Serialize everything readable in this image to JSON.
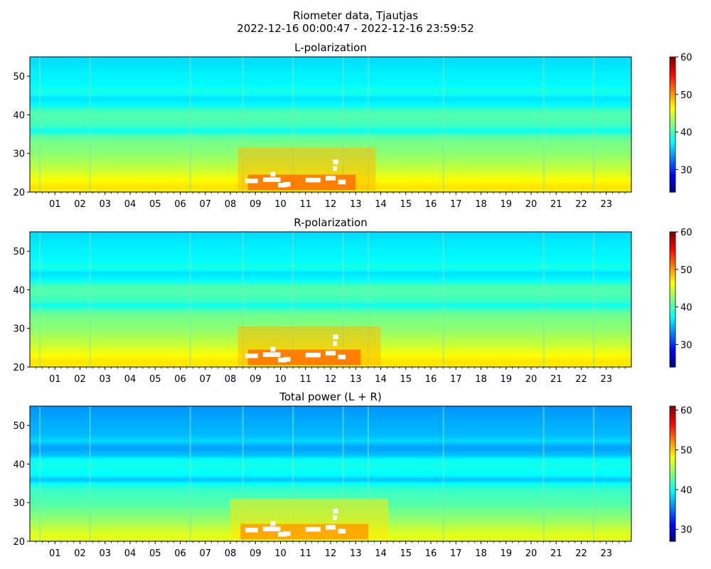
{
  "figure": {
    "title_line1": "Riometer data, Tjautjas",
    "title_line2": "2022-12-16 00:00:47 - 2022-12-16 23:59:52"
  },
  "colormap": "jet",
  "chart_data": [
    {
      "type": "heatmap",
      "title": "L-polarization",
      "xlabel": "",
      "ylabel": "",
      "x_tick_labels": [
        "01",
        "02",
        "03",
        "04",
        "05",
        "06",
        "07",
        "08",
        "09",
        "10",
        "11",
        "12",
        "13",
        "14",
        "15",
        "16",
        "17",
        "18",
        "19",
        "20",
        "21",
        "22",
        "23"
      ],
      "x_range_hours": [
        0,
        24
      ],
      "y_ticks": [
        20,
        30,
        40,
        50
      ],
      "ylim": [
        20,
        55
      ],
      "colorbar": {
        "ticks": [
          30,
          40,
          50,
          60
        ],
        "range": [
          24,
          60
        ]
      },
      "saturated_region": {
        "hours": [
          8.3,
          13.8
        ],
        "y": [
          20.5,
          31.5
        ],
        "peak_hours": [
          9.5,
          12.2
        ]
      },
      "spikes_hours": [
        0.4,
        2.4,
        6.4,
        8.5,
        10.5,
        12.5,
        13.5,
        16.5,
        20.5,
        22.5
      ]
    },
    {
      "type": "heatmap",
      "title": "R-polarization",
      "xlabel": "",
      "ylabel": "",
      "x_tick_labels": [
        "01",
        "02",
        "03",
        "04",
        "05",
        "06",
        "07",
        "08",
        "09",
        "10",
        "11",
        "12",
        "13",
        "14",
        "15",
        "16",
        "17",
        "18",
        "19",
        "20",
        "21",
        "22",
        "23"
      ],
      "x_range_hours": [
        0,
        24
      ],
      "y_ticks": [
        20,
        30,
        40,
        50
      ],
      "ylim": [
        20,
        55
      ],
      "colorbar": {
        "ticks": [
          30,
          40,
          50,
          60
        ],
        "range": [
          24,
          60
        ]
      },
      "saturated_region": {
        "hours": [
          8.3,
          14.0
        ],
        "y": [
          20.5,
          30.5
        ],
        "peak_hours": [
          9.5,
          12.2
        ]
      },
      "spikes_hours": [
        0.4,
        2.4,
        6.4,
        8.5,
        10.5,
        12.5,
        13.5,
        16.5,
        20.5,
        22.5
      ]
    },
    {
      "type": "heatmap",
      "title": "Total power (L + R)",
      "xlabel": "",
      "ylabel": "",
      "x_tick_labels": [
        "01",
        "02",
        "03",
        "04",
        "05",
        "06",
        "07",
        "08",
        "09",
        "10",
        "11",
        "12",
        "13",
        "14",
        "15",
        "16",
        "17",
        "18",
        "19",
        "20",
        "21",
        "22",
        "23"
      ],
      "x_range_hours": [
        0,
        24
      ],
      "y_ticks": [
        20,
        30,
        40,
        50
      ],
      "ylim": [
        20,
        55
      ],
      "colorbar": {
        "ticks": [
          30,
          40,
          50,
          60
        ],
        "range": [
          27,
          61
        ]
      },
      "saturated_region": {
        "hours": [
          8.0,
          14.3
        ],
        "y": [
          20.5,
          31.0
        ],
        "peak_hours": [
          9.5,
          12.2
        ]
      },
      "spikes_hours": [
        0.4,
        2.4,
        6.4,
        8.5,
        10.5,
        12.5,
        13.5,
        16.5,
        20.5,
        22.5
      ]
    }
  ]
}
